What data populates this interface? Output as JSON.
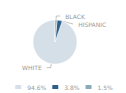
{
  "chart_data": {
    "type": "pie",
    "categories": [
      "WHITE",
      "HISPANIC",
      "BLACK"
    ],
    "values": [
      94.6,
      3.8,
      1.5
    ],
    "value_labels": [
      "94.6%",
      "3.8%",
      "1.5%"
    ],
    "colors": [
      "#d4dfe8",
      "#2e5f8a",
      "#8aaabb"
    ],
    "legend": "bottom"
  }
}
